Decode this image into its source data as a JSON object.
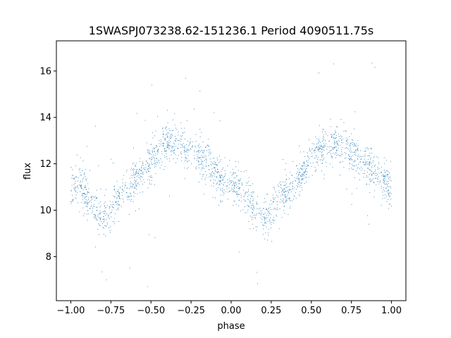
{
  "chart_data": {
    "type": "scatter",
    "title": "1SWASPJ073238.62-151236.1 Period 4090511.75s",
    "xlabel": "phase",
    "ylabel": "flux",
    "xlim": [
      -1.09,
      1.09
    ],
    "ylim": [
      6.1,
      17.3
    ],
    "xticks": [
      -1.0,
      -0.75,
      -0.5,
      -0.25,
      0.0,
      0.25,
      0.5,
      0.75,
      1.0
    ],
    "xtick_labels": [
      "−1.00",
      "−0.75",
      "−0.50",
      "−0.25",
      "0.00",
      "0.25",
      "0.50",
      "0.75",
      "1.00"
    ],
    "yticks": [
      8,
      10,
      12,
      14,
      16
    ],
    "ytick_labels": [
      "8",
      "10",
      "12",
      "14",
      "16"
    ],
    "grid": false,
    "marker_color": "#1f77b4",
    "series": [
      {
        "description_points": "phase-folded light curve, repeated over two cycles",
        "x": [
          -1.0,
          -0.95,
          -0.9,
          -0.85,
          -0.8,
          -0.75,
          -0.7,
          -0.65,
          -0.6,
          -0.55,
          -0.5,
          -0.45,
          -0.4,
          -0.35,
          -0.3,
          -0.25,
          -0.2,
          -0.15,
          -0.1,
          -0.05,
          0.0,
          0.05,
          0.1,
          0.15,
          0.2,
          0.25,
          0.3,
          0.35,
          0.4,
          0.45,
          0.5,
          0.55,
          0.6,
          0.65,
          0.7,
          0.75,
          0.8,
          0.85,
          0.9,
          0.95,
          1.0
        ],
        "y": [
          11.0,
          11.2,
          10.6,
          10.0,
          9.7,
          10.0,
          10.6,
          11.0,
          11.3,
          11.6,
          12.1,
          12.6,
          12.9,
          12.9,
          12.7,
          12.5,
          12.3,
          12.0,
          11.6,
          11.2,
          11.0,
          11.1,
          10.5,
          9.9,
          9.6,
          10.0,
          10.5,
          10.9,
          11.2,
          11.6,
          12.2,
          12.6,
          12.8,
          12.9,
          12.7,
          12.6,
          12.3,
          12.0,
          11.7,
          11.3,
          10.9
        ]
      }
    ]
  }
}
